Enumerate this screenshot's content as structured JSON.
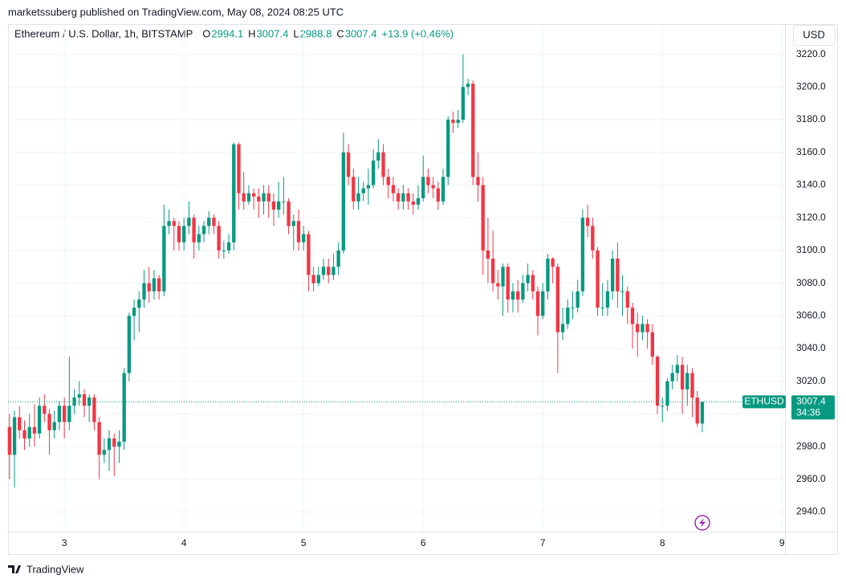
{
  "header": {
    "attribution": "marketssuberg published on TradingView.com, May 08, 2024 08:25 UTC",
    "currency_button": "USD",
    "footer_brand": "TradingView"
  },
  "chart_data": {
    "type": "candlestick",
    "title": "Ethereum / U.S. Dollar, 1h, BITSTAMP",
    "ohlc_letters": [
      "O",
      "H",
      "L",
      "C"
    ],
    "change_label": "+13.9 (+0.46%)",
    "symbol_label": "ETHUSD",
    "countdown_label": "34:36",
    "up_color": "#089981",
    "down_color": "#f23645",
    "grid": true,
    "xlim": [
      36.7,
      192.6
    ],
    "xticks": [
      {
        "value": 48,
        "label": "3"
      },
      {
        "value": 72,
        "label": "4"
      },
      {
        "value": 96,
        "label": "5"
      },
      {
        "value": 120,
        "label": "6"
      },
      {
        "value": 144,
        "label": "7"
      },
      {
        "value": 168,
        "label": "8"
      },
      {
        "value": 192,
        "label": "9"
      }
    ],
    "ylim": [
      2928,
      3238
    ],
    "yticks": [
      {
        "value": 2940,
        "label": "2940.0"
      },
      {
        "value": 2960,
        "label": "2960.0"
      },
      {
        "value": 2980,
        "label": "2980.0"
      },
      {
        "value": 3000,
        "label": "3000.0"
      },
      {
        "value": 3020,
        "label": "3020.0"
      },
      {
        "value": 3040,
        "label": "3040.0"
      },
      {
        "value": 3060,
        "label": "3060.0"
      },
      {
        "value": 3080,
        "label": "3080.0"
      },
      {
        "value": 3100,
        "label": "3100.0"
      },
      {
        "value": 3120,
        "label": "3120.0"
      },
      {
        "value": 3140,
        "label": "3140.0"
      },
      {
        "value": 3160,
        "label": "3160.0"
      },
      {
        "value": 3180,
        "label": "3180.0"
      },
      {
        "value": 3200,
        "label": "3200.0"
      },
      {
        "value": 3220,
        "label": "3220.0"
      }
    ],
    "x": [
      37,
      38,
      39,
      40,
      41,
      42,
      43,
      44,
      45,
      46,
      47,
      48,
      49,
      50,
      51,
      52,
      53,
      54,
      55,
      56,
      57,
      58,
      59,
      60,
      61,
      62,
      63,
      64,
      65,
      66,
      67,
      68,
      69,
      70,
      71,
      72,
      73,
      74,
      75,
      76,
      77,
      78,
      79,
      80,
      81,
      82,
      83,
      84,
      85,
      86,
      87,
      88,
      89,
      90,
      91,
      92,
      93,
      94,
      95,
      96,
      97,
      98,
      99,
      100,
      101,
      102,
      103,
      104,
      105,
      106,
      107,
      108,
      109,
      110,
      111,
      112,
      113,
      114,
      115,
      116,
      117,
      118,
      119,
      120,
      121,
      122,
      123,
      124,
      125,
      126,
      127,
      128,
      129,
      130,
      131,
      132,
      133,
      134,
      135,
      136,
      137,
      138,
      139,
      140,
      141,
      142,
      143,
      144,
      145,
      146,
      147,
      148,
      149,
      150,
      151,
      152,
      153,
      154,
      155,
      156,
      157,
      158,
      159,
      160,
      161,
      162,
      163,
      164,
      165,
      166,
      167,
      168,
      169,
      170,
      171,
      172,
      173,
      174,
      175,
      176
    ],
    "open": [
      2992,
      2975,
      2998,
      2990,
      2985,
      2992,
      2988,
      3005,
      3000,
      2990,
      2995,
      3005,
      2995,
      3005,
      3010,
      3012,
      3005,
      3010,
      2995,
      2975,
      2978,
      2985,
      2980,
      2983,
      3025,
      3060,
      3065,
      3070,
      3080,
      3075,
      3083,
      3075,
      3115,
      3118,
      3115,
      3105,
      3115,
      3120,
      3105,
      3110,
      3115,
      3120,
      3115,
      3100,
      3100,
      3105,
      3165,
      3135,
      3130,
      3135,
      3133,
      3130,
      3135,
      3130,
      3125,
      3130,
      3130,
      3115,
      3118,
      3105,
      3110,
      3085,
      3080,
      3085,
      3090,
      3085,
      3090,
      3100,
      3160,
      3145,
      3130,
      3135,
      3138,
      3140,
      3155,
      3160,
      3145,
      3140,
      3135,
      3130,
      3135,
      3130,
      3128,
      3132,
      3145,
      3140,
      3138,
      3130,
      3145,
      3180,
      3178,
      3180,
      3200,
      3202,
      3145,
      3140,
      3100,
      3095,
      3080,
      3078,
      3090,
      3070,
      3075,
      3070,
      3080,
      3085,
      3075,
      3060,
      3075,
      3095,
      3090,
      3050,
      3055,
      3065,
      3065,
      3075,
      3120,
      3115,
      3100,
      3065,
      3065,
      3075,
      3095,
      3075,
      3075,
      3065,
      3055,
      3050,
      3055,
      3050,
      3035,
      3005,
      3005,
      3020,
      3025,
      3030,
      3015,
      3025,
      3010,
      2994.1
    ],
    "high": [
      3000,
      3002,
      3005,
      2996,
      3000,
      3006,
      3010,
      3012,
      3003,
      3002,
      3008,
      3010,
      3035,
      3015,
      3020,
      3015,
      3012,
      3012,
      2998,
      2985,
      2990,
      2988,
      2990,
      3028,
      3062,
      3070,
      3075,
      3088,
      3090,
      3088,
      3085,
      3128,
      3125,
      3120,
      3118,
      3120,
      3130,
      3122,
      3115,
      3118,
      3124,
      3122,
      3118,
      3106,
      3110,
      3166,
      3166,
      3148,
      3140,
      3138,
      3138,
      3140,
      3140,
      3135,
      3142,
      3145,
      3132,
      3122,
      3125,
      3115,
      3112,
      3090,
      3090,
      3095,
      3095,
      3098,
      3105,
      3172,
      3165,
      3150,
      3145,
      3142,
      3150,
      3162,
      3168,
      3165,
      3150,
      3145,
      3138,
      3140,
      3138,
      3135,
      3140,
      3158,
      3150,
      3145,
      3142,
      3150,
      3182,
      3185,
      3186,
      3220,
      3205,
      3204,
      3160,
      3145,
      3120,
      3112,
      3088,
      3092,
      3092,
      3080,
      3082,
      3085,
      3092,
      3088,
      3078,
      3080,
      3098,
      3096,
      3092,
      3065,
      3070,
      3075,
      3082,
      3125,
      3128,
      3120,
      3102,
      3080,
      3082,
      3100,
      3105,
      3085,
      3078,
      3068,
      3062,
      3060,
      3058,
      3055,
      3036,
      3010,
      3022,
      3030,
      3036,
      3035,
      3030,
      3028,
      3014,
      3007.4
    ],
    "low": [
      2960,
      2955,
      2985,
      2978,
      2980,
      2980,
      2985,
      2995,
      2975,
      2985,
      2990,
      2985,
      2990,
      3000,
      3005,
      2998,
      2995,
      2990,
      2960,
      2970,
      2965,
      2962,
      2970,
      2978,
      3020,
      3045,
      3050,
      3065,
      3068,
      3070,
      3070,
      3072,
      3110,
      3100,
      3100,
      3100,
      3110,
      3095,
      3100,
      3105,
      3110,
      3110,
      3095,
      3095,
      3098,
      3100,
      3125,
      3125,
      3128,
      3125,
      3120,
      3122,
      3120,
      3115,
      3120,
      3122,
      3110,
      3100,
      3100,
      3100,
      3075,
      3075,
      3078,
      3082,
      3080,
      3082,
      3085,
      3098,
      3140,
      3125,
      3125,
      3130,
      3128,
      3138,
      3150,
      3140,
      3132,
      3130,
      3125,
      3125,
      3125,
      3122,
      3125,
      3130,
      3135,
      3132,
      3125,
      3128,
      3140,
      3172,
      3175,
      3178,
      3195,
      3140,
      3130,
      3085,
      3080,
      3075,
      3070,
      3060,
      3062,
      3062,
      3062,
      3068,
      3075,
      3070,
      3048,
      3058,
      3070,
      3080,
      3025,
      3045,
      3052,
      3058,
      3062,
      3072,
      3108,
      3095,
      3060,
      3060,
      3060,
      3070,
      3065,
      3060,
      3055,
      3040,
      3035,
      3045,
      3040,
      3030,
      3000,
      2995,
      3002,
      3015,
      3020,
      3000,
      3005,
      2998,
      2992,
      2988.8
    ],
    "close": [
      2975,
      2998,
      2990,
      2985,
      2992,
      2988,
      3005,
      3000,
      2990,
      2995,
      3005,
      2995,
      3005,
      3010,
      3012,
      3005,
      3010,
      2995,
      2975,
      2978,
      2985,
      2980,
      2983,
      3025,
      3060,
      3065,
      3070,
      3080,
      3075,
      3083,
      3075,
      3115,
      3118,
      3115,
      3105,
      3115,
      3120,
      3105,
      3110,
      3115,
      3120,
      3115,
      3100,
      3100,
      3105,
      3165,
      3135,
      3130,
      3135,
      3133,
      3130,
      3135,
      3130,
      3125,
      3130,
      3130,
      3115,
      3118,
      3105,
      3110,
      3085,
      3080,
      3085,
      3090,
      3085,
      3090,
      3100,
      3160,
      3145,
      3130,
      3135,
      3138,
      3140,
      3155,
      3160,
      3145,
      3140,
      3135,
      3130,
      3135,
      3130,
      3128,
      3132,
      3145,
      3140,
      3138,
      3130,
      3145,
      3180,
      3178,
      3180,
      3200,
      3202,
      3145,
      3140,
      3100,
      3095,
      3080,
      3078,
      3090,
      3070,
      3075,
      3070,
      3080,
      3085,
      3075,
      3060,
      3075,
      3095,
      3090,
      3050,
      3055,
      3065,
      3065,
      3075,
      3120,
      3115,
      3100,
      3065,
      3065,
      3075,
      3095,
      3075,
      3075,
      3065,
      3055,
      3050,
      3055,
      3050,
      3035,
      3005,
      3005,
      3020,
      3025,
      3030,
      3015,
      3025,
      3010,
      2994.1,
      3007.4
    ]
  }
}
